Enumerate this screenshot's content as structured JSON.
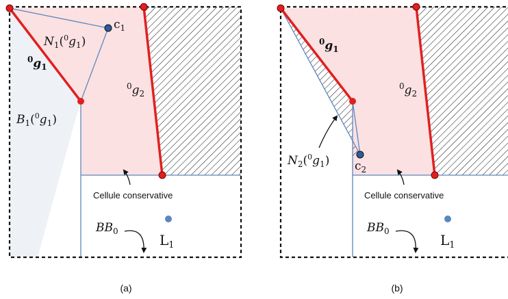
{
  "colors": {
    "free_region": "#fbe1e1",
    "shadow_region": "#eef1f6",
    "edge_red": "#e02020",
    "node_red": "#e02020",
    "cell_line": "#5b86c0",
    "point_blue": "#5b86c0",
    "point_dark": "#2e5c9c",
    "hatch": "#222222",
    "frame": "#111111"
  },
  "panel_a": {
    "caption": "(a)",
    "point_c": {
      "letter": "c",
      "sub": "1"
    },
    "neighborhood": {
      "symbol": "N",
      "sub": "1",
      "paren_open": "(",
      "sup": "0",
      "g": "g",
      "g_sub": "1",
      "paren_close": ")"
    },
    "edge_g1": {
      "sup": "0",
      "g": "g",
      "sub": "1"
    },
    "edge_g2": {
      "sup": "0",
      "g": "g",
      "sub": "2"
    },
    "region_b": {
      "symbol": "B",
      "sub": "1",
      "paren_open": "(",
      "sup": "0",
      "g": "g",
      "g_sub": "1",
      "paren_close": ")"
    },
    "conservative_cell": "Cellule conservative",
    "bb": {
      "symbol": "BB",
      "sub": "0"
    },
    "landmark": {
      "letter": "L",
      "sub": "1"
    }
  },
  "panel_b": {
    "caption": "(b)",
    "point_c": {
      "letter": "c",
      "sub": "2"
    },
    "neighborhood": {
      "symbol": "N",
      "sub": "2",
      "paren_open": "(",
      "sup": "0",
      "g": "g",
      "g_sub": "1",
      "paren_close": ")"
    },
    "edge_g1": {
      "sup": "0",
      "g": "g",
      "sub": "1"
    },
    "edge_g2": {
      "sup": "0",
      "g": "g",
      "sub": "2"
    },
    "conservative_cell": "Cellule conservative",
    "bb": {
      "symbol": "BB",
      "sub": "0"
    },
    "landmark": {
      "letter": "L",
      "sub": "1"
    }
  }
}
